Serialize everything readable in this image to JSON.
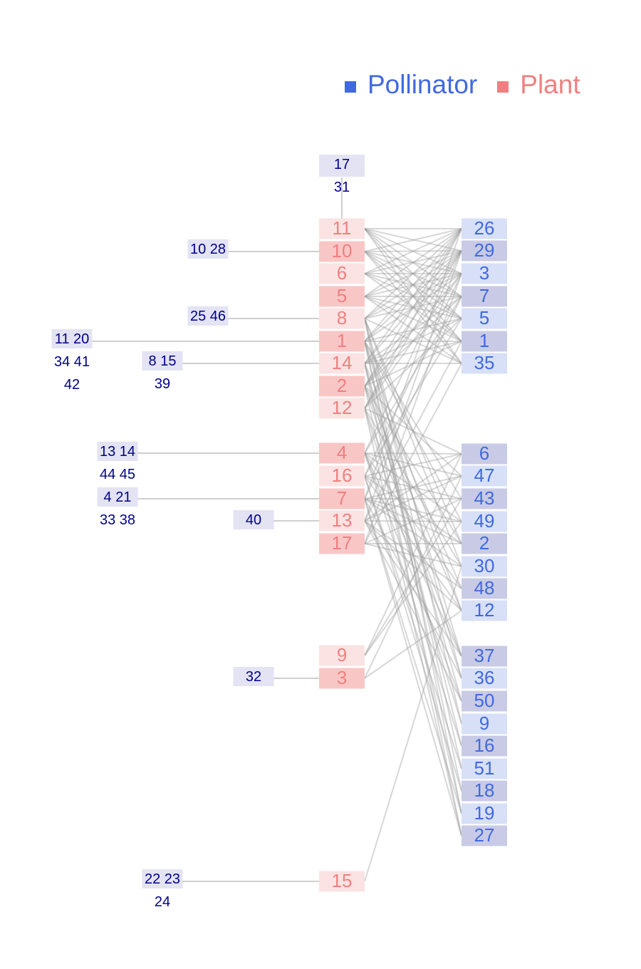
{
  "legend": {
    "pollinator_label": "Pollinator",
    "plant_label": "Plant",
    "pollinator_color": "#4169e1",
    "plant_color": "#f08080"
  },
  "colors": {
    "plant_box_light": "#fbe3e3",
    "plant_box_dark": "#f9c6c6",
    "plant_text": "#f08080",
    "poll_box_light": "#d7e0f7",
    "poll_box_dark": "#c9cbe6",
    "poll_text": "#4169e1",
    "group_box": "#e3e3f3",
    "group_text": "#00008b",
    "edge": "#9b9b9b",
    "connector": "#cfcfcf"
  },
  "plants": [
    "11",
    "10",
    "6",
    "5",
    "8",
    "1",
    "14",
    "2",
    "12",
    "4",
    "16",
    "7",
    "13",
    "17",
    "9",
    "3",
    "15"
  ],
  "pollinators": [
    "26",
    "29",
    "3",
    "7",
    "5",
    "1",
    "35",
    "6",
    "47",
    "43",
    "49",
    "2",
    "30",
    "48",
    "12",
    "37",
    "36",
    "50",
    "9",
    "16",
    "51",
    "18",
    "19",
    "27"
  ],
  "specialist_groups": [
    {
      "plant": "11",
      "lines": [
        "17",
        "31"
      ]
    },
    {
      "plant": "10",
      "lines": [
        "10 28"
      ]
    },
    {
      "plant": "8",
      "lines": [
        "25 46"
      ]
    },
    {
      "plant": "1",
      "lines": [
        "11 20",
        "34 41",
        "42"
      ]
    },
    {
      "plant": "14",
      "lines": [
        "8 15",
        "39"
      ]
    },
    {
      "plant": "4",
      "lines": [
        "13 14",
        "44 45"
      ]
    },
    {
      "plant": "7",
      "lines": [
        "4 21",
        "33 38"
      ]
    },
    {
      "plant": "13",
      "lines": [
        "40"
      ]
    },
    {
      "plant": "3",
      "lines": [
        "32"
      ]
    },
    {
      "plant": "15",
      "lines": [
        "22 23",
        "24"
      ]
    }
  ],
  "interactions": [
    [
      "11",
      "26"
    ],
    [
      "11",
      "29"
    ],
    [
      "11",
      "3"
    ],
    [
      "11",
      "7"
    ],
    [
      "11",
      "5"
    ],
    [
      "11",
      "1"
    ],
    [
      "11",
      "35"
    ],
    [
      "10",
      "26"
    ],
    [
      "10",
      "29"
    ],
    [
      "10",
      "3"
    ],
    [
      "10",
      "7"
    ],
    [
      "10",
      "5"
    ],
    [
      "10",
      "1"
    ],
    [
      "10",
      "35"
    ],
    [
      "6",
      "26"
    ],
    [
      "6",
      "29"
    ],
    [
      "6",
      "3"
    ],
    [
      "6",
      "7"
    ],
    [
      "6",
      "5"
    ],
    [
      "6",
      "1"
    ],
    [
      "5",
      "26"
    ],
    [
      "5",
      "29"
    ],
    [
      "5",
      "3"
    ],
    [
      "5",
      "7"
    ],
    [
      "5",
      "5"
    ],
    [
      "5",
      "1"
    ],
    [
      "5",
      "35"
    ],
    [
      "8",
      "26"
    ],
    [
      "8",
      "29"
    ],
    [
      "8",
      "3"
    ],
    [
      "8",
      "7"
    ],
    [
      "8",
      "35"
    ],
    [
      "8",
      "2"
    ],
    [
      "8",
      "30"
    ],
    [
      "8",
      "36"
    ],
    [
      "8",
      "9"
    ],
    [
      "8",
      "19"
    ],
    [
      "1",
      "26"
    ],
    [
      "1",
      "29"
    ],
    [
      "1",
      "3"
    ],
    [
      "1",
      "5"
    ],
    [
      "1",
      "1"
    ],
    [
      "1",
      "43"
    ],
    [
      "1",
      "49"
    ],
    [
      "1",
      "12"
    ],
    [
      "1",
      "37"
    ],
    [
      "1",
      "51"
    ],
    [
      "1",
      "18"
    ],
    [
      "14",
      "26"
    ],
    [
      "14",
      "29"
    ],
    [
      "14",
      "7"
    ],
    [
      "14",
      "5"
    ],
    [
      "14",
      "1"
    ],
    [
      "14",
      "35"
    ],
    [
      "14",
      "48"
    ],
    [
      "14",
      "50"
    ],
    [
      "14",
      "16"
    ],
    [
      "14",
      "27"
    ],
    [
      "2",
      "26"
    ],
    [
      "2",
      "29"
    ],
    [
      "2",
      "3"
    ],
    [
      "2",
      "7"
    ],
    [
      "2",
      "1"
    ],
    [
      "2",
      "47"
    ],
    [
      "2",
      "2"
    ],
    [
      "2",
      "12"
    ],
    [
      "2",
      "36"
    ],
    [
      "2",
      "19"
    ],
    [
      "12",
      "26"
    ],
    [
      "12",
      "29"
    ],
    [
      "12",
      "3"
    ],
    [
      "12",
      "5"
    ],
    [
      "12",
      "6"
    ],
    [
      "12",
      "30"
    ],
    [
      "12",
      "37"
    ],
    [
      "12",
      "9"
    ],
    [
      "12",
      "27"
    ],
    [
      "4",
      "29"
    ],
    [
      "4",
      "7"
    ],
    [
      "4",
      "6"
    ],
    [
      "4",
      "47"
    ],
    [
      "4",
      "49"
    ],
    [
      "4",
      "48"
    ],
    [
      "4",
      "37"
    ],
    [
      "4",
      "50"
    ],
    [
      "4",
      "16"
    ],
    [
      "16",
      "3"
    ],
    [
      "16",
      "5"
    ],
    [
      "16",
      "6"
    ],
    [
      "16",
      "43"
    ],
    [
      "16",
      "2"
    ],
    [
      "16",
      "12"
    ],
    [
      "16",
      "51"
    ],
    [
      "16",
      "18"
    ],
    [
      "7",
      "26"
    ],
    [
      "7",
      "7"
    ],
    [
      "7",
      "47"
    ],
    [
      "7",
      "43"
    ],
    [
      "7",
      "49"
    ],
    [
      "7",
      "2"
    ],
    [
      "7",
      "30"
    ],
    [
      "7",
      "36"
    ],
    [
      "7",
      "19"
    ],
    [
      "7",
      "27"
    ],
    [
      "13",
      "29"
    ],
    [
      "13",
      "1"
    ],
    [
      "13",
      "6"
    ],
    [
      "13",
      "47"
    ],
    [
      "13",
      "49"
    ],
    [
      "13",
      "48"
    ],
    [
      "13",
      "12"
    ],
    [
      "13",
      "37"
    ],
    [
      "13",
      "50"
    ],
    [
      "17",
      "3"
    ],
    [
      "17",
      "35"
    ],
    [
      "17",
      "43"
    ],
    [
      "17",
      "2"
    ],
    [
      "17",
      "30"
    ],
    [
      "9",
      "6"
    ],
    [
      "9",
      "43"
    ],
    [
      "9",
      "49"
    ],
    [
      "3",
      "47"
    ],
    [
      "3",
      "12"
    ],
    [
      "15",
      "30"
    ]
  ]
}
